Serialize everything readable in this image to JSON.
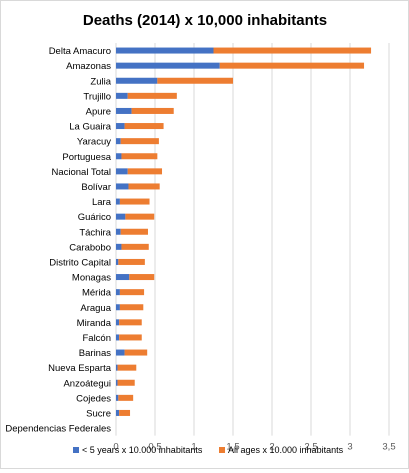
{
  "chart_data": {
    "type": "bar",
    "orientation": "horizontal",
    "stacked": true,
    "title": "Deaths (2014) x 10,000 inhabitants",
    "categories": [
      "Delta Amacuro",
      "Amazonas",
      "Zulia",
      "Trujillo",
      "Apure",
      "La Guaira",
      "Yaracuy",
      "Portuguesa",
      "Nacional Total",
      "Bolívar",
      "Lara",
      "Guárico",
      "Táchira",
      "Carabobo",
      "Distrito Capital",
      "Monagas",
      "Mérida",
      "Aragua",
      "Miranda",
      "Falcón",
      "Barinas",
      "Nueva Esparta",
      "Anzoátegui",
      "Cojedes",
      "Sucre",
      "Dependencias Federales"
    ],
    "series": [
      {
        "name": "< 5 years x 10.000 inhabitants",
        "color": "#4472C4",
        "values": [
          1.25,
          1.33,
          0.53,
          0.15,
          0.2,
          0.11,
          0.06,
          0.07,
          0.15,
          0.16,
          0.05,
          0.12,
          0.06,
          0.07,
          0.03,
          0.17,
          0.05,
          0.05,
          0.04,
          0.04,
          0.11,
          0.02,
          0.02,
          0.03,
          0.04,
          0
        ]
      },
      {
        "name": "All ages x 10.000 inhabitants",
        "color": "#ED7D31",
        "values": [
          2.02,
          1.85,
          0.97,
          0.63,
          0.54,
          0.5,
          0.49,
          0.46,
          0.44,
          0.4,
          0.38,
          0.37,
          0.35,
          0.35,
          0.34,
          0.32,
          0.31,
          0.3,
          0.29,
          0.29,
          0.29,
          0.24,
          0.22,
          0.19,
          0.14,
          0
        ]
      }
    ],
    "xlim": [
      0,
      3.5
    ],
    "xticks": [
      "0",
      "0,5",
      "1",
      "1,5",
      "2",
      "2,5",
      "3",
      "3,5"
    ],
    "grid": true,
    "legend_position": "bottom"
  }
}
